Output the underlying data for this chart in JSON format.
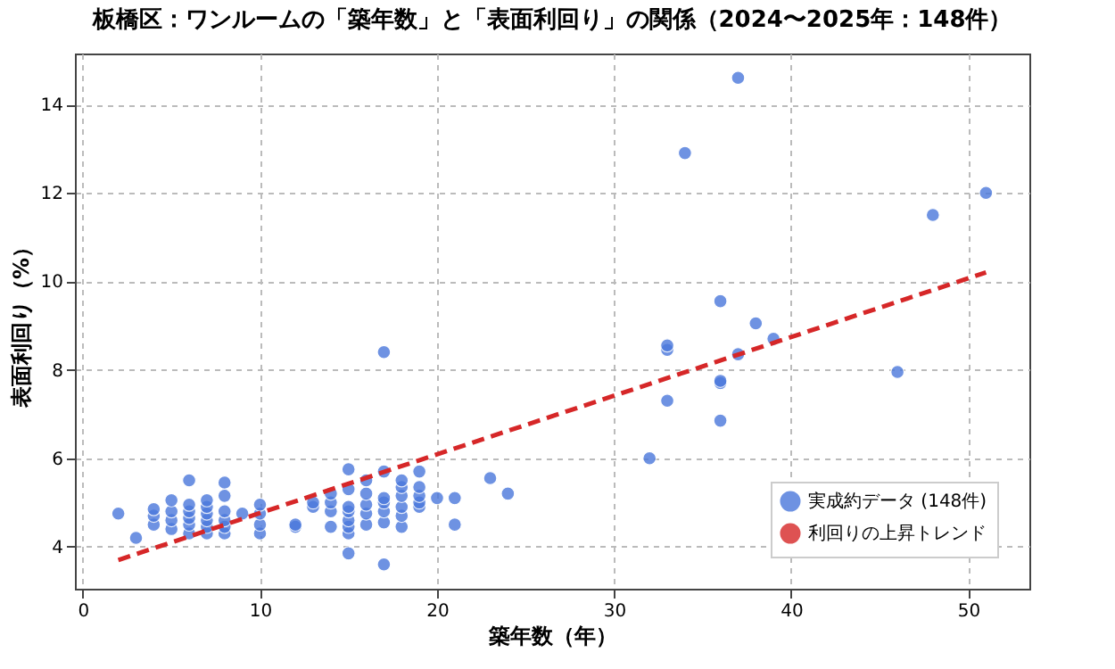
{
  "chart_data": {
    "type": "scatter",
    "title": "板橋区：ワンルームの「築年数」と「表面利回り」の関係（2024〜2025年：148件）",
    "xlabel": "築年数（年）",
    "ylabel": "表面利回り（%）",
    "xlim": [
      -0.45,
      53.45
    ],
    "xticks": [
      0,
      10,
      20,
      30,
      40,
      50
    ],
    "ylim": [
      3.05,
      15.15
    ],
    "yticks": [
      4,
      6,
      8,
      10,
      12,
      14
    ],
    "grid": true,
    "legend": "bottom right",
    "series": [
      {
        "name": "実成約データ (148件)",
        "color": "#4a78dc",
        "marker": "circle",
        "x": [
          2,
          3,
          4,
          4,
          4,
          5,
          5,
          5,
          5,
          6,
          6,
          6,
          6,
          6,
          6,
          7,
          7,
          7,
          7,
          7,
          7,
          8,
          8,
          8,
          8,
          8,
          8,
          9,
          10,
          10,
          10,
          10,
          12,
          12,
          13,
          13,
          14,
          14,
          14,
          14,
          15,
          15,
          15,
          15,
          15,
          15,
          15,
          15,
          16,
          16,
          16,
          16,
          16,
          17,
          17,
          17,
          17,
          17,
          17,
          17,
          18,
          18,
          18,
          18,
          18,
          18,
          19,
          19,
          19,
          19,
          19,
          20,
          21,
          21,
          23,
          24,
          32,
          33,
          33,
          33,
          34,
          36,
          36,
          36,
          36,
          37,
          37,
          38,
          39,
          46,
          48,
          51
        ],
        "values": [
          4.75,
          4.2,
          4.5,
          4.7,
          4.85,
          4.4,
          4.6,
          4.8,
          5.05,
          4.3,
          4.5,
          4.65,
          4.8,
          4.95,
          5.5,
          4.3,
          4.45,
          4.6,
          4.75,
          4.9,
          5.05,
          4.3,
          4.45,
          4.6,
          4.8,
          5.15,
          5.45,
          4.75,
          4.3,
          4.5,
          4.75,
          4.95,
          4.45,
          4.5,
          4.9,
          5.0,
          4.45,
          4.8,
          5.0,
          5.2,
          3.85,
          4.3,
          4.45,
          4.6,
          4.8,
          4.9,
          5.3,
          5.75,
          4.5,
          4.75,
          4.95,
          5.2,
          5.5,
          3.6,
          4.55,
          4.8,
          5.0,
          5.1,
          5.7,
          8.4,
          4.45,
          4.7,
          4.9,
          5.15,
          5.35,
          5.5,
          4.9,
          5.0,
          5.15,
          5.35,
          5.7,
          5.1,
          4.5,
          5.1,
          5.55,
          5.2,
          6.0,
          7.3,
          8.45,
          8.55,
          12.9,
          6.85,
          7.7,
          7.75,
          9.55,
          8.35,
          14.6,
          9.05,
          8.7,
          7.95,
          11.5,
          12.0
        ]
      },
      {
        "name": "利回りの上昇トレンド",
        "color": "#d62728",
        "type": "line",
        "line_style": "dashed",
        "x": [
          2,
          51
        ],
        "values": [
          3.7,
          10.2
        ]
      }
    ]
  }
}
